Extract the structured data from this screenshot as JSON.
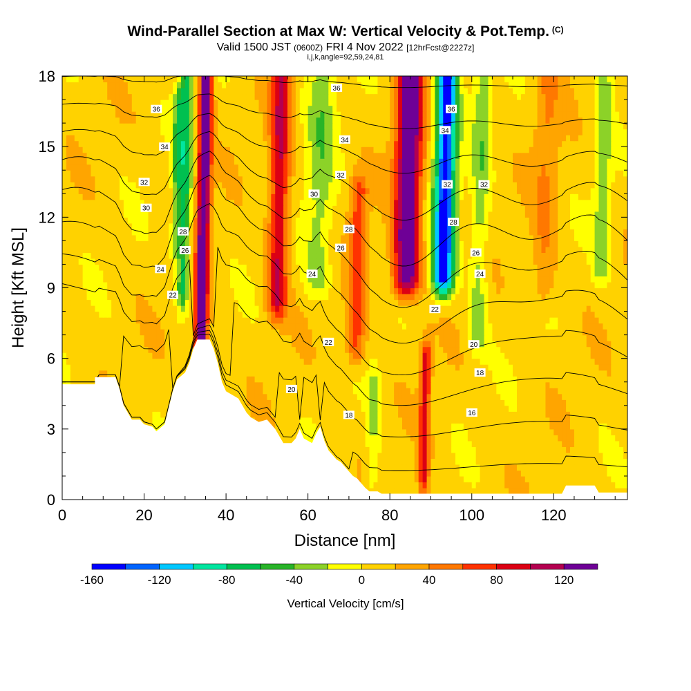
{
  "title": {
    "main": "Wind-Parallel Section at Max W: Vertical Velocity & Pot.Temp.",
    "unit_mark": "(C)",
    "valid_prefix": "Valid 1500 JST",
    "valid_utc": "(0600Z)",
    "valid_date": "FRI 4 Nov 2022",
    "forecast": "[12hrFcst@2227z]",
    "params": "i,j,k,angle=92,59,24,81"
  },
  "chart_data": {
    "type": "heatmap",
    "xlabel": "Distance [nm]",
    "ylabel": "Height [Kft MSL]",
    "xlim": [
      0,
      138
    ],
    "ylim": [
      0,
      18
    ],
    "xticks": [
      0,
      20,
      40,
      60,
      80,
      100,
      120
    ],
    "yticks": [
      0,
      3,
      6,
      9,
      12,
      15,
      18
    ],
    "colorbar": {
      "label": "Vertical Velocity [cm/s]",
      "ticks": [
        -160,
        -120,
        -80,
        -40,
        0,
        40,
        80,
        120
      ],
      "bounds": [
        -160,
        -140,
        -120,
        -100,
        -80,
        -60,
        -40,
        -20,
        0,
        20,
        40,
        60,
        80,
        100,
        120,
        140
      ],
      "colors": [
        "#0000ff",
        "#0064ff",
        "#00c8ff",
        "#00e6a0",
        "#00c050",
        "#28b428",
        "#8cd228",
        "#ffff00",
        "#ffd200",
        "#ffa500",
        "#ff7800",
        "#ff3200",
        "#dc0014",
        "#b40050",
        "#6e0096"
      ]
    },
    "background_value": 10,
    "updraft_downdraft_columns": [
      {
        "x": 34.5,
        "y0": 6.5,
        "y1": 18,
        "halfwidth": 1.6,
        "peak": 140
      },
      {
        "x": 30,
        "y0": 9,
        "y1": 18,
        "halfwidth": 1.5,
        "peak": -80
      },
      {
        "x": 28,
        "y0": 11,
        "y1": 17,
        "halfwidth": 1.2,
        "peak": -50
      },
      {
        "x": 53,
        "y0": 8.5,
        "y1": 18,
        "halfwidth": 2.4,
        "peak": 90
      },
      {
        "x": 63,
        "y0": 9.5,
        "y1": 18,
        "halfwidth": 3.5,
        "peak": -40
      },
      {
        "x": 72,
        "y0": 6.5,
        "y1": 13,
        "halfwidth": 2.2,
        "peak": 60
      },
      {
        "x": 84.5,
        "y0": 9.5,
        "y1": 18,
        "halfwidth": 3.2,
        "peak": 140
      },
      {
        "x": 93.5,
        "y0": 9.5,
        "y1": 18,
        "halfwidth": 2.6,
        "peak": -160
      },
      {
        "x": 102,
        "y0": 7,
        "y1": 18,
        "halfwidth": 2.2,
        "peak": -40
      },
      {
        "x": 88.5,
        "y0": 1,
        "y1": 6,
        "halfwidth": 1.3,
        "peak": 80
      },
      {
        "x": 76,
        "y0": 1,
        "y1": 5,
        "halfwidth": 1.6,
        "peak": -30
      },
      {
        "x": 118,
        "y0": 9,
        "y1": 18,
        "halfwidth": 3,
        "peak": 30
      },
      {
        "x": 132,
        "y0": 10,
        "y1": 18,
        "halfwidth": 2,
        "peak": -40
      }
    ],
    "terrain": [
      [
        0,
        4.9
      ],
      [
        8,
        4.9
      ],
      [
        8,
        5.2
      ],
      [
        13,
        5.2
      ],
      [
        14,
        4.7
      ],
      [
        15,
        4.0
      ],
      [
        16,
        3.7
      ],
      [
        17,
        3.4
      ],
      [
        19,
        3.4
      ],
      [
        20,
        3.2
      ],
      [
        22,
        3.1
      ],
      [
        23,
        2.9
      ],
      [
        25,
        3.2
      ],
      [
        26,
        3.9
      ],
      [
        27,
        4.6
      ],
      [
        28,
        5.1
      ],
      [
        30,
        5.4
      ],
      [
        31,
        5.8
      ],
      [
        32,
        6.4
      ],
      [
        33,
        6.8
      ],
      [
        36,
        6.8
      ],
      [
        37,
        6.4
      ],
      [
        38,
        5.8
      ],
      [
        39,
        5.0
      ],
      [
        40,
        4.6
      ],
      [
        43,
        4.3
      ],
      [
        44,
        4.0
      ],
      [
        45,
        3.7
      ],
      [
        46,
        3.5
      ],
      [
        47,
        3.4
      ],
      [
        48,
        3.3
      ],
      [
        50,
        3.4
      ],
      [
        52,
        3.0
      ],
      [
        53,
        2.7
      ],
      [
        54,
        2.4
      ],
      [
        56,
        2.4
      ],
      [
        57,
        2.6
      ],
      [
        58,
        3.0
      ],
      [
        59,
        2.6
      ],
      [
        61,
        2.4
      ],
      [
        62,
        2.8
      ],
      [
        63,
        3.1
      ],
      [
        64,
        2.5
      ],
      [
        65,
        2.1
      ],
      [
        66,
        1.9
      ],
      [
        67,
        1.7
      ],
      [
        68,
        1.6
      ],
      [
        69,
        1.4
      ],
      [
        70,
        1.2
      ],
      [
        71,
        1.0
      ],
      [
        72,
        0.9
      ],
      [
        73,
        0.7
      ],
      [
        74,
        0.5
      ],
      [
        75,
        0.35
      ],
      [
        77,
        0.35
      ],
      [
        78,
        0.25
      ],
      [
        80,
        0.25
      ],
      [
        100,
        0.25
      ],
      [
        115,
        0.25
      ],
      [
        122,
        0.25
      ],
      [
        123,
        0.6
      ],
      [
        130,
        0.6
      ],
      [
        131,
        0.3
      ],
      [
        138,
        0.3
      ]
    ],
    "theta_levels": [
      16,
      18,
      20,
      22,
      24,
      26,
      28,
      30,
      32,
      34,
      36
    ],
    "contour_labels": [
      {
        "x": 23,
        "y": 16.6,
        "text": "36"
      },
      {
        "x": 25,
        "y": 15.0,
        "text": "34"
      },
      {
        "x": 20,
        "y": 13.5,
        "text": "32"
      },
      {
        "x": 20.5,
        "y": 12.4,
        "text": "30"
      },
      {
        "x": 29.5,
        "y": 11.4,
        "text": "28"
      },
      {
        "x": 30,
        "y": 10.6,
        "text": "26"
      },
      {
        "x": 24,
        "y": 9.8,
        "text": "24"
      },
      {
        "x": 27,
        "y": 8.7,
        "text": "22"
      },
      {
        "x": 67,
        "y": 17.5,
        "text": "36"
      },
      {
        "x": 69,
        "y": 15.3,
        "text": "34"
      },
      {
        "x": 68,
        "y": 13.8,
        "text": "32"
      },
      {
        "x": 61.5,
        "y": 13.0,
        "text": "30"
      },
      {
        "x": 70,
        "y": 11.5,
        "text": "28"
      },
      {
        "x": 68,
        "y": 10.7,
        "text": "26"
      },
      {
        "x": 61,
        "y": 9.6,
        "text": "24"
      },
      {
        "x": 65,
        "y": 6.7,
        "text": "22"
      },
      {
        "x": 56,
        "y": 4.7,
        "text": "20"
      },
      {
        "x": 70,
        "y": 3.6,
        "text": "18"
      },
      {
        "x": 95,
        "y": 16.6,
        "text": "36"
      },
      {
        "x": 93.5,
        "y": 15.7,
        "text": "34"
      },
      {
        "x": 94,
        "y": 13.4,
        "text": "32"
      },
      {
        "x": 95.5,
        "y": 11.8,
        "text": "28"
      },
      {
        "x": 103,
        "y": 13.4,
        "text": "32"
      },
      {
        "x": 101,
        "y": 10.5,
        "text": "26"
      },
      {
        "x": 102,
        "y": 9.6,
        "text": "24"
      },
      {
        "x": 91,
        "y": 8.1,
        "text": "22"
      },
      {
        "x": 100.5,
        "y": 6.6,
        "text": "20"
      },
      {
        "x": 102,
        "y": 5.4,
        "text": "18"
      },
      {
        "x": 100,
        "y": 3.7,
        "text": "16"
      }
    ]
  }
}
